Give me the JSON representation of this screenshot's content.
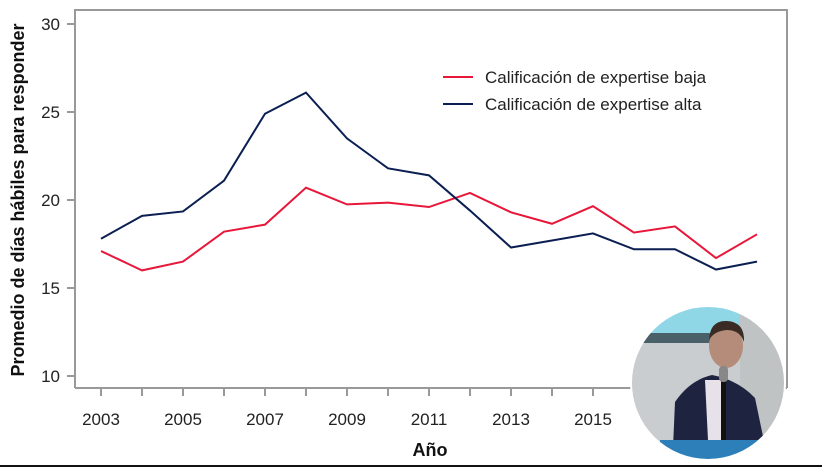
{
  "chart_data": {
    "type": "line",
    "title": "",
    "xlabel": "Año",
    "ylabel": "Promedio de días hábiles para responder",
    "ylim": [
      10,
      30
    ],
    "yticks": [
      "10",
      "15",
      "20",
      "25",
      "30"
    ],
    "xtick_labels": [
      "2003",
      "2005",
      "2007",
      "2009",
      "2011",
      "2013",
      "2015"
    ],
    "x": [
      2003,
      2004,
      2005,
      2006,
      2007,
      2008,
      2009,
      2010,
      2011,
      2012,
      2013,
      2014,
      2015,
      2016,
      2017,
      2018,
      2019
    ],
    "legend_position": "top-right",
    "grid": false,
    "series": [
      {
        "name": "Calificación de expertise baja",
        "color": "#e8173a",
        "values": [
          17.1,
          16.0,
          16.5,
          18.2,
          18.6,
          20.7,
          19.75,
          19.85,
          19.6,
          20.4,
          19.3,
          18.65,
          19.65,
          18.15,
          18.5,
          16.7,
          18.05
        ]
      },
      {
        "name": "Calificación de expertise alta",
        "color": "#0b1f52",
        "values": [
          17.8,
          19.1,
          19.35,
          21.1,
          24.9,
          26.1,
          23.5,
          21.8,
          21.4,
          19.4,
          17.3,
          17.7,
          18.1,
          17.2,
          17.2,
          16.05,
          16.5
        ]
      }
    ]
  },
  "overlay": {
    "icon": "speaker-video-icon"
  }
}
